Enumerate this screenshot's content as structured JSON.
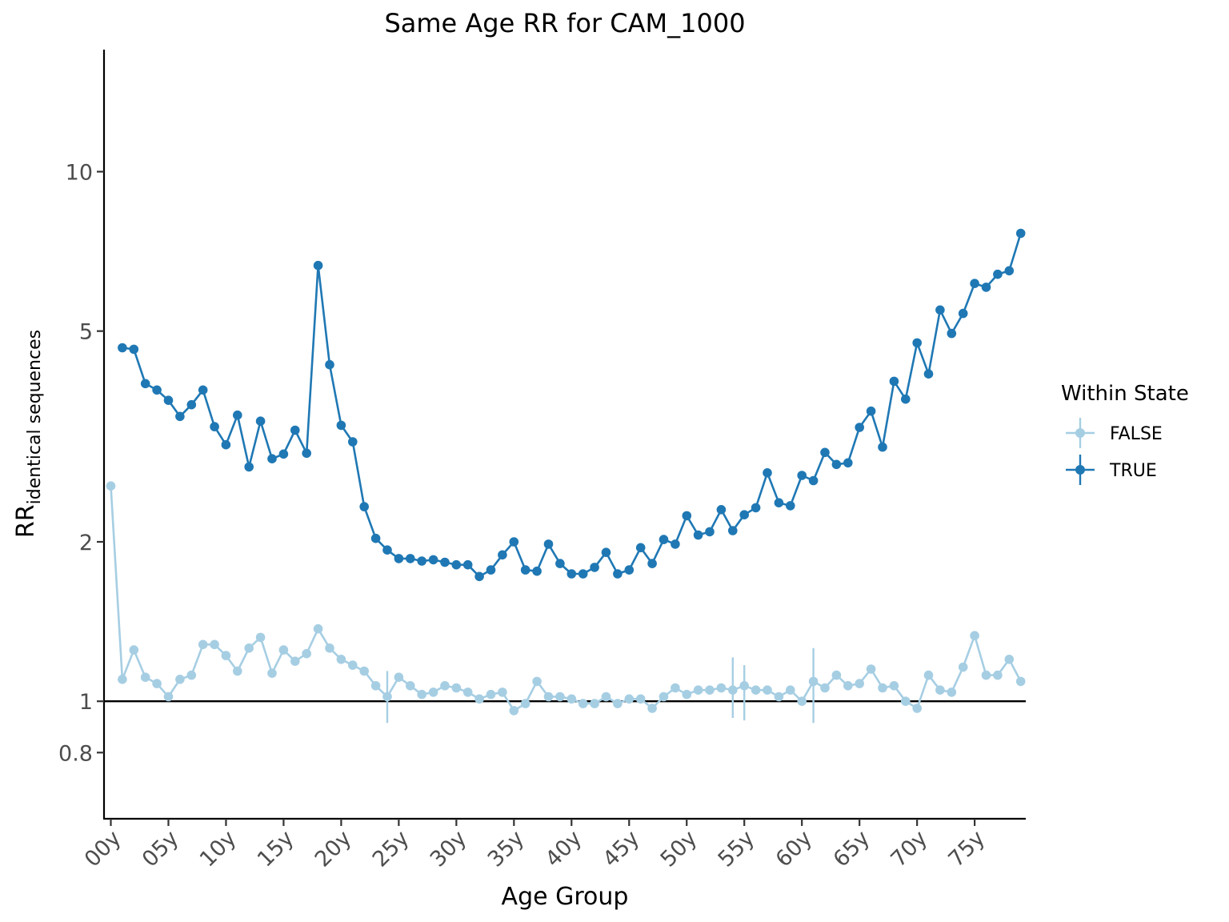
{
  "chart_data": {
    "type": "line",
    "title": "Same Age RR for CAM_1000",
    "xlabel": "Age Group",
    "ylabel_main": "RR",
    "ylabel_sub": "identical sequences",
    "y_scale": "log",
    "ylim": [
      0.6,
      17
    ],
    "y_ticks": [
      {
        "value": 0.8,
        "label": "0.8"
      },
      {
        "value": 1,
        "label": "1"
      },
      {
        "value": 2,
        "label": "2"
      },
      {
        "value": 5,
        "label": "5"
      },
      {
        "value": 10,
        "label": "10"
      }
    ],
    "x_tick_labels": [
      "00y",
      "05y",
      "10y",
      "15y",
      "20y",
      "25y",
      "30y",
      "35y",
      "40y",
      "45y",
      "50y",
      "55y",
      "60y",
      "65y",
      "70y",
      "75y"
    ],
    "x_tick_every": 5,
    "reference_line": 1,
    "legend": {
      "title": "Within State",
      "position": "right"
    },
    "series": [
      {
        "name": "FALSE",
        "color": "#a6cee3",
        "values": [
          2.55,
          1.1,
          1.25,
          1.11,
          1.08,
          1.02,
          1.1,
          1.12,
          1.28,
          1.28,
          1.22,
          1.14,
          1.26,
          1.32,
          1.13,
          1.25,
          1.19,
          1.23,
          1.37,
          1.26,
          1.2,
          1.17,
          1.14,
          1.07,
          1.02,
          1.11,
          1.07,
          1.03,
          1.04,
          1.07,
          1.06,
          1.04,
          1.01,
          1.03,
          1.04,
          0.96,
          0.99,
          1.09,
          1.02,
          1.02,
          1.01,
          0.99,
          0.99,
          1.02,
          0.99,
          1.01,
          1.01,
          0.97,
          1.02,
          1.06,
          1.03,
          1.05,
          1.05,
          1.06,
          1.05,
          1.07,
          1.05,
          1.05,
          1.02,
          1.05,
          1.0,
          1.09,
          1.06,
          1.12,
          1.07,
          1.08,
          1.15,
          1.06,
          1.07,
          1.0,
          0.97,
          1.12,
          1.05,
          1.04,
          1.16,
          1.33,
          1.12,
          1.12,
          1.2,
          1.09
        ],
        "error_bars": [
          {
            "index": 24,
            "low": 0.91,
            "high": 1.14
          },
          {
            "index": 54,
            "low": 0.93,
            "high": 1.21
          },
          {
            "index": 55,
            "low": 0.92,
            "high": 1.17
          },
          {
            "index": 61,
            "low": 0.91,
            "high": 1.26
          }
        ]
      },
      {
        "name": "TRUE",
        "color": "#1f78b4",
        "values": [
          null,
          4.65,
          4.62,
          3.98,
          3.87,
          3.7,
          3.45,
          3.63,
          3.87,
          3.3,
          3.05,
          3.47,
          2.77,
          3.38,
          2.87,
          2.93,
          3.25,
          2.94,
          6.65,
          4.32,
          3.32,
          3.09,
          2.33,
          2.03,
          1.93,
          1.86,
          1.86,
          1.84,
          1.85,
          1.83,
          1.81,
          1.81,
          1.72,
          1.77,
          1.89,
          2.0,
          1.77,
          1.76,
          1.98,
          1.82,
          1.74,
          1.74,
          1.79,
          1.91,
          1.74,
          1.77,
          1.95,
          1.82,
          2.02,
          1.98,
          2.24,
          2.06,
          2.09,
          2.3,
          2.1,
          2.25,
          2.32,
          2.7,
          2.37,
          2.34,
          2.67,
          2.61,
          2.95,
          2.8,
          2.82,
          3.29,
          3.53,
          3.02,
          4.02,
          3.72,
          4.75,
          4.15,
          5.48,
          4.95,
          5.4,
          6.15,
          6.05,
          6.4,
          6.5,
          7.65
        ]
      }
    ]
  }
}
